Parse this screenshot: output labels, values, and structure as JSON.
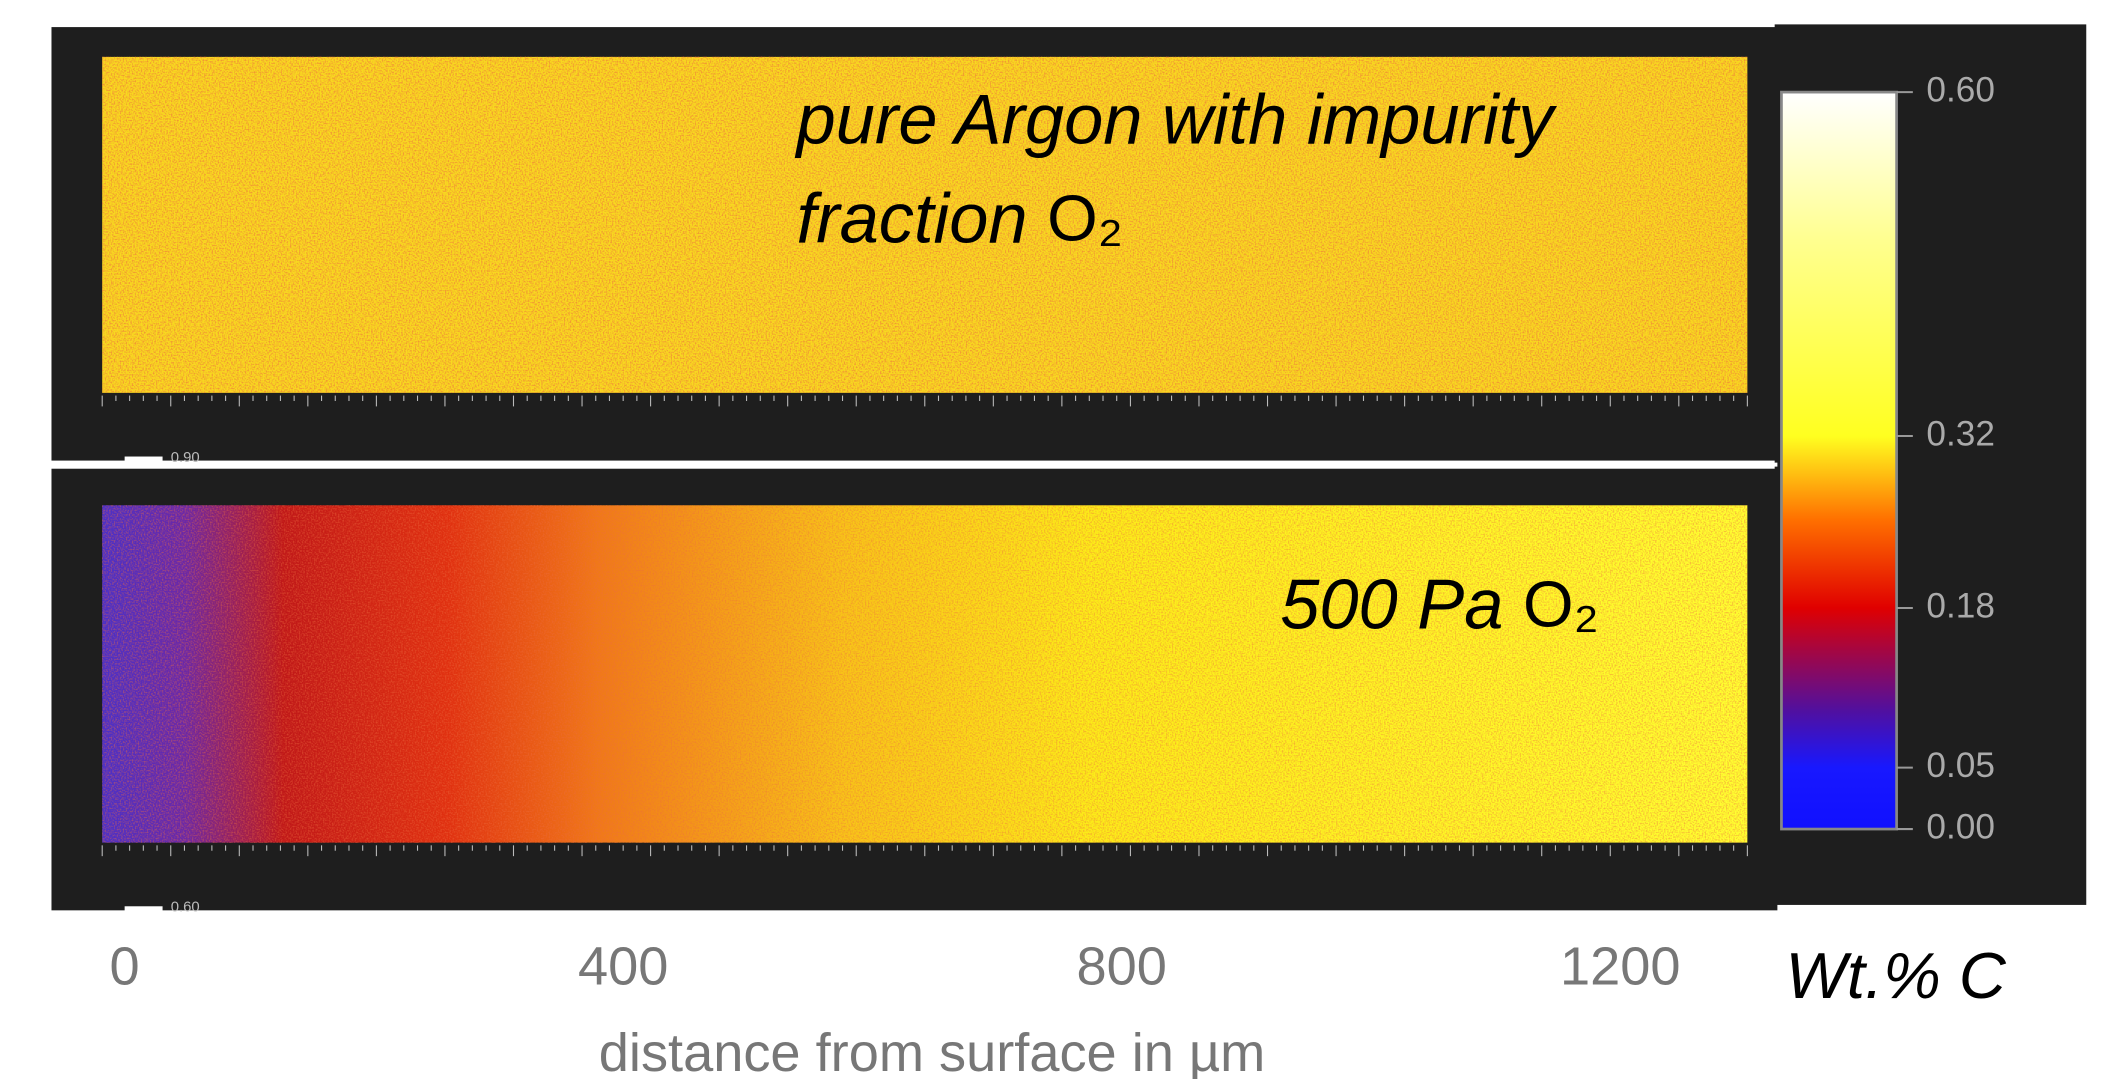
{
  "chart_data": {
    "type": "heatmap",
    "panels": [
      {
        "annotation": [
          "pure Argon with impurity",
          "fraction"
        ],
        "formula": "O₂",
        "scale_label": "0.90"
      },
      {
        "annotation": [
          "500 Pa"
        ],
        "formula": "O₂",
        "scale_label": "0.60"
      }
    ],
    "xlabel": "distance from surface in µm",
    "xlim": [
      -18,
      1302
    ],
    "xticks": [
      0,
      400,
      800,
      1200
    ],
    "colorbar": {
      "label": "Wt.% C",
      "clim": [
        0,
        0.6
      ],
      "ticks": [
        {
          "value": 0.6,
          "label": "0.60"
        },
        {
          "value": 0.32,
          "label": "0.32"
        },
        {
          "value": 0.18,
          "label": "0.18"
        },
        {
          "value": 0.05,
          "label": "0.05"
        },
        {
          "value": 0,
          "label": "0.00"
        }
      ]
    }
  }
}
